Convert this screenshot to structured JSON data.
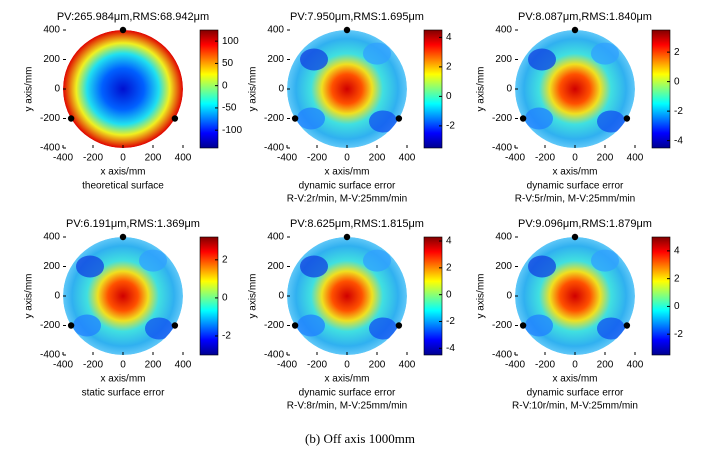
{
  "figure_caption": "(b)    Off axis 1000mm",
  "chart_data": [
    {
      "type": "heatmap",
      "pattern": "bowl",
      "title": "PV:265.984μm,RMS:68.942μm",
      "xlabel": "x axis/mm",
      "ylabel": "y axis/mm",
      "caption": [
        "theoretical surface"
      ],
      "xlim": [
        -400,
        400
      ],
      "xticks": [
        -400,
        -200,
        0,
        200,
        400
      ],
      "ylim": [
        -400,
        400
      ],
      "yticks": [
        -400,
        -200,
        0,
        200,
        400
      ],
      "clim": [
        -140,
        125
      ],
      "cticks": [
        -100,
        -50,
        0,
        50,
        100
      ],
      "support_x": [
        0,
        -346,
        346
      ],
      "support_y": [
        400,
        -200,
        -200
      ]
    },
    {
      "type": "heatmap",
      "pattern": "dome",
      "title": "PV:7.950μm,RMS:1.695μm",
      "xlabel": "x axis/mm",
      "ylabel": "y axis/mm",
      "caption": [
        "dynamic surface error",
        "R-V:2r/min, M-V:25mm/min"
      ],
      "xlim": [
        -400,
        400
      ],
      "xticks": [
        -400,
        -200,
        0,
        200,
        400
      ],
      "ylim": [
        -400,
        400
      ],
      "yticks": [
        -400,
        -200,
        0,
        200,
        400
      ],
      "clim": [
        -3.5,
        4.5
      ],
      "cticks": [
        -2,
        0,
        2,
        4
      ],
      "support_x": [
        0,
        -346,
        346
      ],
      "support_y": [
        400,
        -200,
        -200
      ]
    },
    {
      "type": "heatmap",
      "pattern": "dome",
      "title": "PV:8.087μm,RMS:1.840μm",
      "xlabel": "x axis/mm",
      "ylabel": "y axis/mm",
      "caption": [
        "dynamic surface error",
        "R-V:5r/min, M-V:25mm/min"
      ],
      "xlim": [
        -400,
        400
      ],
      "xticks": [
        -400,
        -200,
        0,
        200,
        400
      ],
      "ylim": [
        -400,
        400
      ],
      "yticks": [
        -400,
        -200,
        0,
        200,
        400
      ],
      "clim": [
        -4.5,
        3.5
      ],
      "cticks": [
        -4,
        -2,
        0,
        2
      ],
      "support_x": [
        0,
        -346,
        346
      ],
      "support_y": [
        400,
        -200,
        -200
      ]
    },
    {
      "type": "heatmap",
      "pattern": "dome",
      "title": "PV:6.191μm,RMS:1.369μm",
      "xlabel": "x axis/mm",
      "ylabel": "y axis/mm",
      "caption": [
        "static surface error"
      ],
      "xlim": [
        -400,
        400
      ],
      "xticks": [
        -400,
        -200,
        0,
        200,
        400
      ],
      "ylim": [
        -400,
        400
      ],
      "yticks": [
        -400,
        -200,
        0,
        200,
        400
      ],
      "clim": [
        -3,
        3.2
      ],
      "cticks": [
        -2,
        0,
        2
      ],
      "support_x": [
        0,
        -346,
        346
      ],
      "support_y": [
        400,
        -200,
        -200
      ]
    },
    {
      "type": "heatmap",
      "pattern": "dome",
      "title": "PV:8.625μm,RMS:1.815μm",
      "xlabel": "x axis/mm",
      "ylabel": "y axis/mm",
      "caption": [
        "dynamic surface error",
        "R-V:8r/min, M-V:25mm/min"
      ],
      "xlim": [
        -400,
        400
      ],
      "xticks": [
        -400,
        -200,
        0,
        200,
        400
      ],
      "ylim": [
        -400,
        400
      ],
      "yticks": [
        -400,
        -200,
        0,
        200,
        400
      ],
      "clim": [
        -4.5,
        4.3
      ],
      "cticks": [
        -4,
        -2,
        0,
        2,
        4
      ],
      "support_x": [
        0,
        -346,
        346
      ],
      "support_y": [
        400,
        -200,
        -200
      ]
    },
    {
      "type": "heatmap",
      "pattern": "dome",
      "title": "PV:9.096μm,RMS:1.879μm",
      "xlabel": "x axis/mm",
      "ylabel": "y axis/mm",
      "caption": [
        "dynamic surface error",
        "R-V:10r/min, M-V:25mm/min"
      ],
      "xlim": [
        -400,
        400
      ],
      "xticks": [
        -400,
        -200,
        0,
        200,
        400
      ],
      "ylim": [
        -400,
        400
      ],
      "yticks": [
        -400,
        -200,
        0,
        200,
        400
      ],
      "clim": [
        -3.5,
        5
      ],
      "cticks": [
        -2,
        0,
        2,
        4
      ],
      "support_x": [
        0,
        -346,
        346
      ],
      "support_y": [
        400,
        -200,
        -200
      ]
    }
  ]
}
